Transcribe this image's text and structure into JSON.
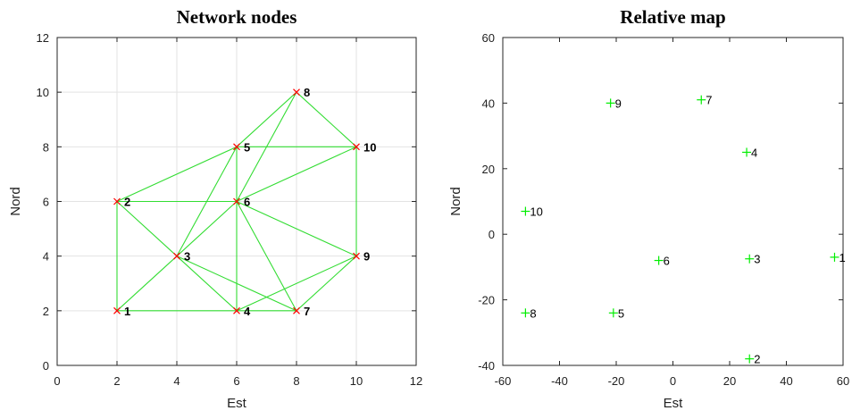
{
  "chart_data": [
    {
      "type": "scatter",
      "title": "Network nodes",
      "xlabel": "Est",
      "ylabel": "Nord",
      "xlim": [
        0,
        12
      ],
      "ylim": [
        0,
        12
      ],
      "xticks": [
        "0",
        "2",
        "4",
        "6",
        "8",
        "10",
        "12"
      ],
      "yticks": [
        "0",
        "2",
        "4",
        "6",
        "8",
        "10",
        "12"
      ],
      "grid": true,
      "marker": "x",
      "marker_color": "#ff0000",
      "edge_color": "#33dd33",
      "points": [
        {
          "label": "1",
          "x": 2,
          "y": 2
        },
        {
          "label": "2",
          "x": 2,
          "y": 6
        },
        {
          "label": "3",
          "x": 4,
          "y": 4
        },
        {
          "label": "4",
          "x": 6,
          "y": 2
        },
        {
          "label": "5",
          "x": 6,
          "y": 8
        },
        {
          "label": "6",
          "x": 6,
          "y": 6
        },
        {
          "label": "7",
          "x": 8,
          "y": 2
        },
        {
          "label": "8",
          "x": 8,
          "y": 10
        },
        {
          "label": "9",
          "x": 10,
          "y": 4
        },
        {
          "label": "10",
          "x": 10,
          "y": 8
        }
      ],
      "edges": [
        [
          1,
          2
        ],
        [
          1,
          3
        ],
        [
          1,
          4
        ],
        [
          2,
          3
        ],
        [
          2,
          5
        ],
        [
          2,
          6
        ],
        [
          3,
          5
        ],
        [
          3,
          6
        ],
        [
          3,
          4
        ],
        [
          3,
          7
        ],
        [
          4,
          6
        ],
        [
          4,
          7
        ],
        [
          4,
          9
        ],
        [
          5,
          6
        ],
        [
          5,
          8
        ],
        [
          5,
          10
        ],
        [
          6,
          8
        ],
        [
          6,
          10
        ],
        [
          6,
          7
        ],
        [
          6,
          9
        ],
        [
          7,
          9
        ],
        [
          8,
          10
        ],
        [
          9,
          10
        ]
      ]
    },
    {
      "type": "scatter",
      "title": "Relative map",
      "xlabel": "Est",
      "ylabel": "Nord",
      "xlim": [
        -60,
        60
      ],
      "ylim": [
        -40,
        60
      ],
      "xticks": [
        "-60",
        "-40",
        "-20",
        "0",
        "20",
        "40",
        "60"
      ],
      "yticks": [
        "-40",
        "-20",
        "0",
        "20",
        "40",
        "60"
      ],
      "grid": false,
      "marker": "+",
      "marker_color": "#00ee00",
      "points": [
        {
          "label": "1",
          "x": 57,
          "y": -7
        },
        {
          "label": "2",
          "x": 27,
          "y": -38
        },
        {
          "label": "3",
          "x": 27,
          "y": -7.5
        },
        {
          "label": "4",
          "x": 26,
          "y": 25
        },
        {
          "label": "5",
          "x": -21,
          "y": -24
        },
        {
          "label": "6",
          "x": -5,
          "y": -8
        },
        {
          "label": "7",
          "x": 10,
          "y": 41
        },
        {
          "label": "8",
          "x": -52,
          "y": -24
        },
        {
          "label": "9",
          "x": -22,
          "y": 40
        },
        {
          "label": "10",
          "x": -52,
          "y": 7
        }
      ]
    }
  ]
}
